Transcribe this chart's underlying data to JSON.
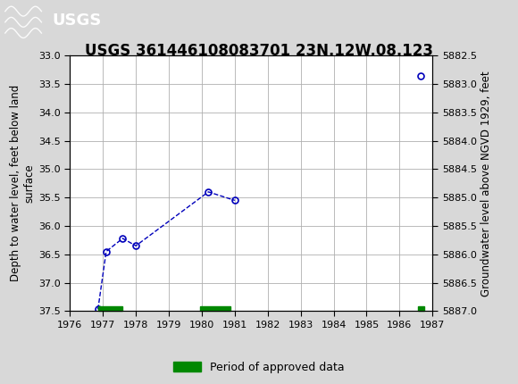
{
  "title": "USGS 361446108083701 23N.12W.08.123",
  "ylabel_left": "Depth to water level, feet below land\nsurface",
  "ylabel_right": "Groundwater level above NGVD 1929, feet",
  "xlim": [
    1976,
    1987
  ],
  "ylim_left": [
    33.0,
    37.5
  ],
  "ylim_right": [
    5882.5,
    5887.0
  ],
  "xticks": [
    1976,
    1977,
    1978,
    1979,
    1980,
    1981,
    1982,
    1983,
    1984,
    1985,
    1986,
    1987
  ],
  "yticks_left": [
    33.0,
    33.5,
    34.0,
    34.5,
    35.0,
    35.5,
    36.0,
    36.5,
    37.0,
    37.5
  ],
  "yticks_right": [
    5882.5,
    5883.0,
    5883.5,
    5884.0,
    5884.5,
    5885.0,
    5885.5,
    5886.0,
    5886.5,
    5887.0
  ],
  "segments": [
    {
      "x": [
        1976.85,
        1977.1,
        1977.6,
        1978.0,
        1980.2,
        1981.0
      ],
      "y": [
        37.47,
        36.45,
        36.22,
        36.35,
        35.4,
        35.55
      ]
    },
    {
      "x": [
        1986.65
      ],
      "y": [
        33.35
      ]
    }
  ],
  "line_color": "#0000bb",
  "marker_color": "#0000bb",
  "line_style": "--",
  "marker_style": "o",
  "marker_size": 5,
  "green_bars": [
    {
      "x_start": 1976.85,
      "x_end": 1977.58
    },
    {
      "x_start": 1979.95,
      "x_end": 1980.88
    },
    {
      "x_start": 1986.55,
      "x_end": 1986.75
    }
  ],
  "green_bar_color": "#008800",
  "green_bar_height": 0.09,
  "legend_label": "Period of approved data",
  "header_color": "#1a6632",
  "background_color": "#d8d8d8",
  "plot_bg_color": "#ffffff",
  "grid_color": "#b0b0b0",
  "title_fontsize": 12,
  "axis_label_fontsize": 8.5,
  "tick_fontsize": 8
}
